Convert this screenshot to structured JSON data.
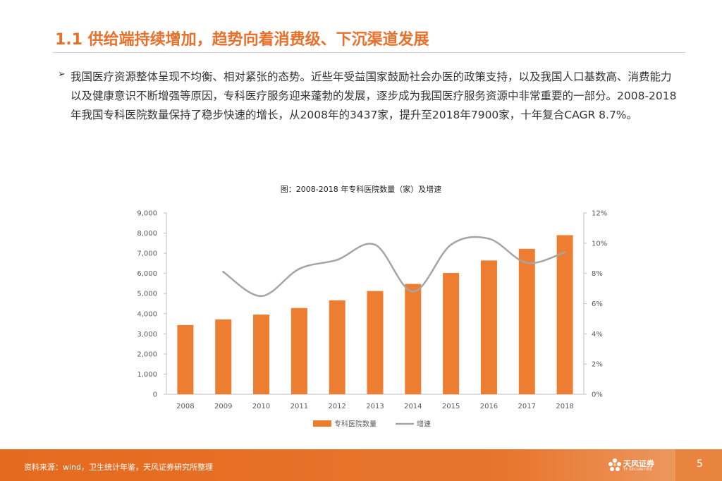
{
  "slide": {
    "title": "1.1 供给端持续增加，趋势向着消费级、下沉渠道发展",
    "bullet": "我国医疗资源整体呈现不均衡、相对紧张的态势。近些年受益国家鼓励社会办医的政策支持，以及我国人口基数高、消费能力以及健康意识不断增强等原因，专科医疗服务迎来蓬勃的发展，逐步成为我国医疗服务资源中非常重要的一部分。2008-2018年我国专科医院数量保持了稳步快速的增长，从2008年的3437家，提升至2018年7900家，十年复合CAGR 8.7%。",
    "footer_source": "资料来源：wind，卫生统计年鉴，天风证券研究所整理",
    "logo_text": "天风证券",
    "logo_sub": "TF SECURITIES",
    "page_number": "5"
  },
  "colors": {
    "accent": "#e8702a",
    "bar": "#ed7d31",
    "line": "#a5a5a5"
  },
  "chart_data": {
    "type": "bar",
    "title": "图：2008-2018 年专科医院数量（家）及增速",
    "categories": [
      "2008",
      "2009",
      "2010",
      "2011",
      "2012",
      "2013",
      "2014",
      "2015",
      "2016",
      "2017",
      "2018"
    ],
    "series": [
      {
        "name": "专科医院数量",
        "type": "bar",
        "axis": "left",
        "values": [
          3437,
          3716,
          3956,
          4283,
          4665,
          5127,
          5478,
          6023,
          6642,
          7220,
          7900
        ]
      },
      {
        "name": "增速",
        "type": "line",
        "axis": "right",
        "values": [
          null,
          8.1,
          6.5,
          8.3,
          8.9,
          9.9,
          6.8,
          9.9,
          10.3,
          8.7,
          9.4
        ]
      }
    ],
    "y_left": {
      "min": 0,
      "max": 9000,
      "ticks": [
        "0",
        "1,000",
        "2,000",
        "3,000",
        "4,000",
        "5,000",
        "6,000",
        "7,000",
        "8,000",
        "9,000"
      ]
    },
    "y_right": {
      "min": 0,
      "max": 12,
      "ticks": [
        "0%",
        "2%",
        "4%",
        "6%",
        "8%",
        "10%",
        "12%"
      ]
    },
    "legend_position": "bottom",
    "grid": false
  }
}
